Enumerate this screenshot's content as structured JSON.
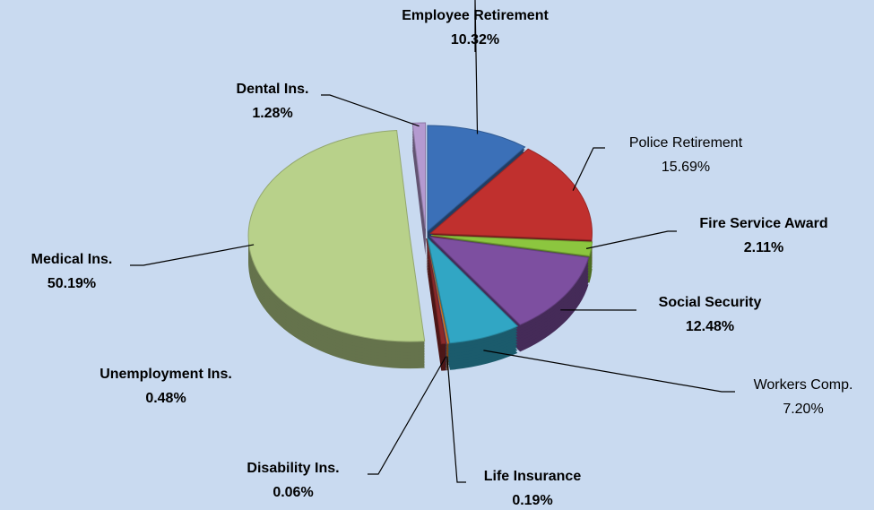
{
  "chart_data": {
    "type": "pie",
    "categories": [
      "Employee Retirement",
      "Police Retirement",
      "Fire Service Award",
      "Social Security",
      "Workers Comp.",
      "Life Insurance",
      "Disability Ins.",
      "Unemployment Ins.",
      "Medical Ins.",
      "Dental Ins."
    ],
    "values": [
      10.32,
      15.69,
      2.11,
      12.48,
      7.2,
      0.19,
      0.06,
      0.48,
      50.19,
      1.28
    ],
    "value_labels": [
      "10.32%",
      "15.69%",
      "2.11%",
      "12.48%",
      "7.20%",
      "0.19%",
      "0.06%",
      "0.48%",
      "50.19%",
      "1.28%"
    ],
    "colors": [
      "#3b70b8",
      "#c0302e",
      "#8cc63f",
      "#7d4fa0",
      "#31a6c4",
      "#e67e22",
      "#4472c4",
      "#8b2a2a",
      "#b8d18a",
      "#b49ad0"
    ]
  }
}
